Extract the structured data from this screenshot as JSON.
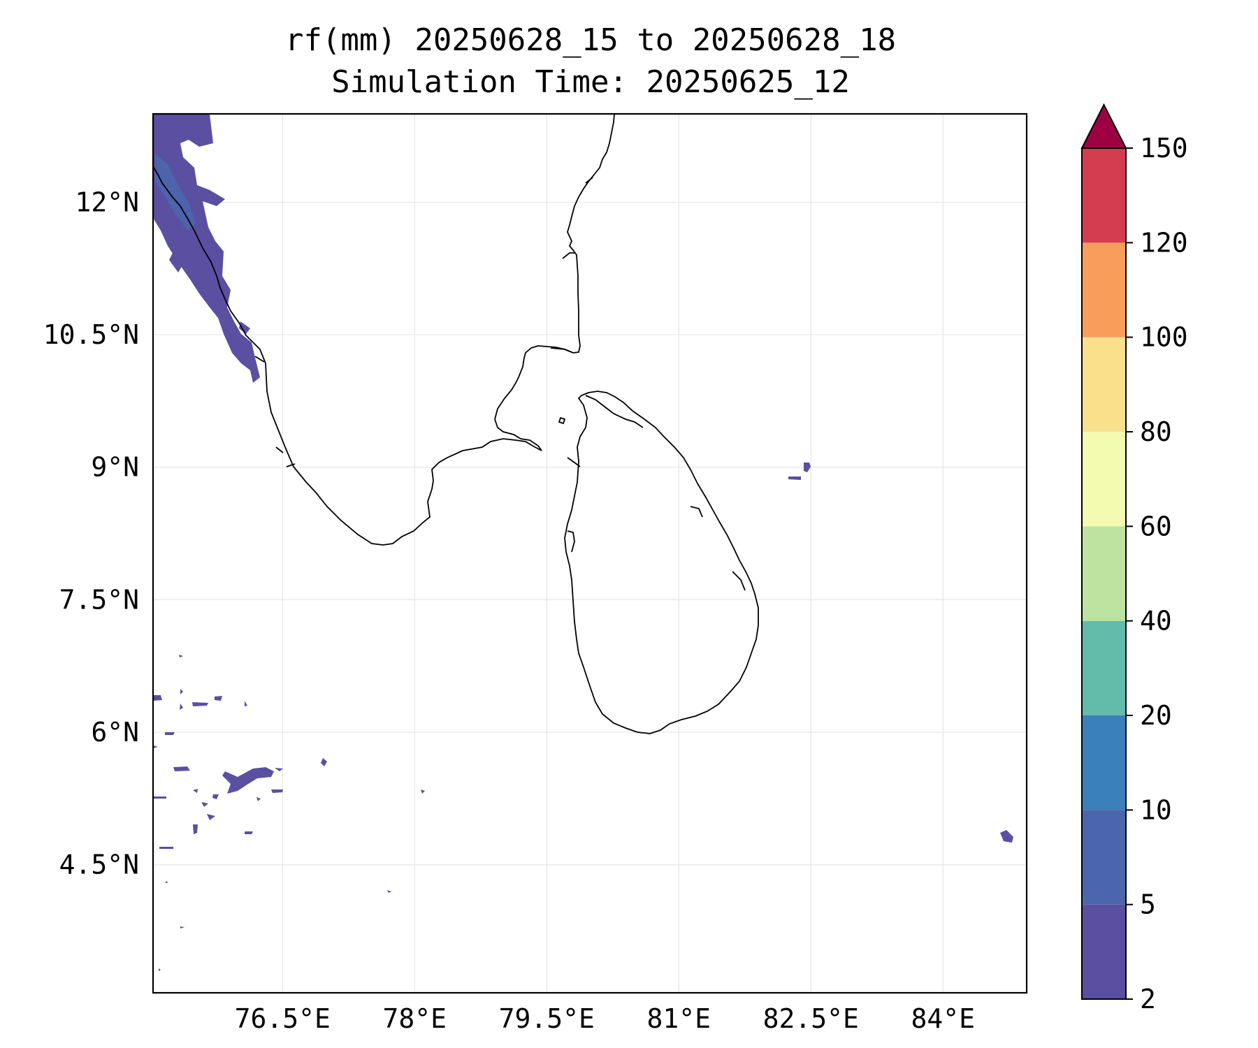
{
  "title_line1": "rf(mm) 20250628_15 to 20250628_18",
  "title_line2": "Simulation Time: 20250625_12",
  "lon_ticks": [
    {
      "value": 76.5,
      "label": "76.5°E"
    },
    {
      "value": 78.0,
      "label": "78°E"
    },
    {
      "value": 79.5,
      "label": "79.5°E"
    },
    {
      "value": 81.0,
      "label": "81°E"
    },
    {
      "value": 82.5,
      "label": "82.5°E"
    },
    {
      "value": 84.0,
      "label": "84°E"
    }
  ],
  "lat_ticks": [
    {
      "value": 12.0,
      "label": "12°N"
    },
    {
      "value": 10.5,
      "label": "10.5°N"
    },
    {
      "value": 9.0,
      "label": "9°N"
    },
    {
      "value": 7.5,
      "label": "7.5°N"
    },
    {
      "value": 6.0,
      "label": "6°N"
    },
    {
      "value": 4.5,
      "label": "4.5°N"
    }
  ],
  "extent": {
    "lon": [
      75.03,
      84.95
    ],
    "lat": [
      3.05,
      13.0
    ]
  },
  "colorbar": {
    "levels": [
      "2",
      "5",
      "10",
      "20",
      "40",
      "60",
      "80",
      "100",
      "120",
      "150"
    ],
    "colors": [
      "#5a4fa0",
      "#4b66ad",
      "#3a80bb",
      "#63bcaa",
      "#bde3a0",
      "#f2fbb0",
      "#fbe08c",
      "#f89d5a",
      "#d43d4f"
    ],
    "extend_color": "#9e0142",
    "extend": "max"
  },
  "colors": {
    "rain_main": "#5a4fa0",
    "rain_edge": "#4b66ad",
    "grid": "#e6e6e6",
    "coast": "#000000"
  }
}
